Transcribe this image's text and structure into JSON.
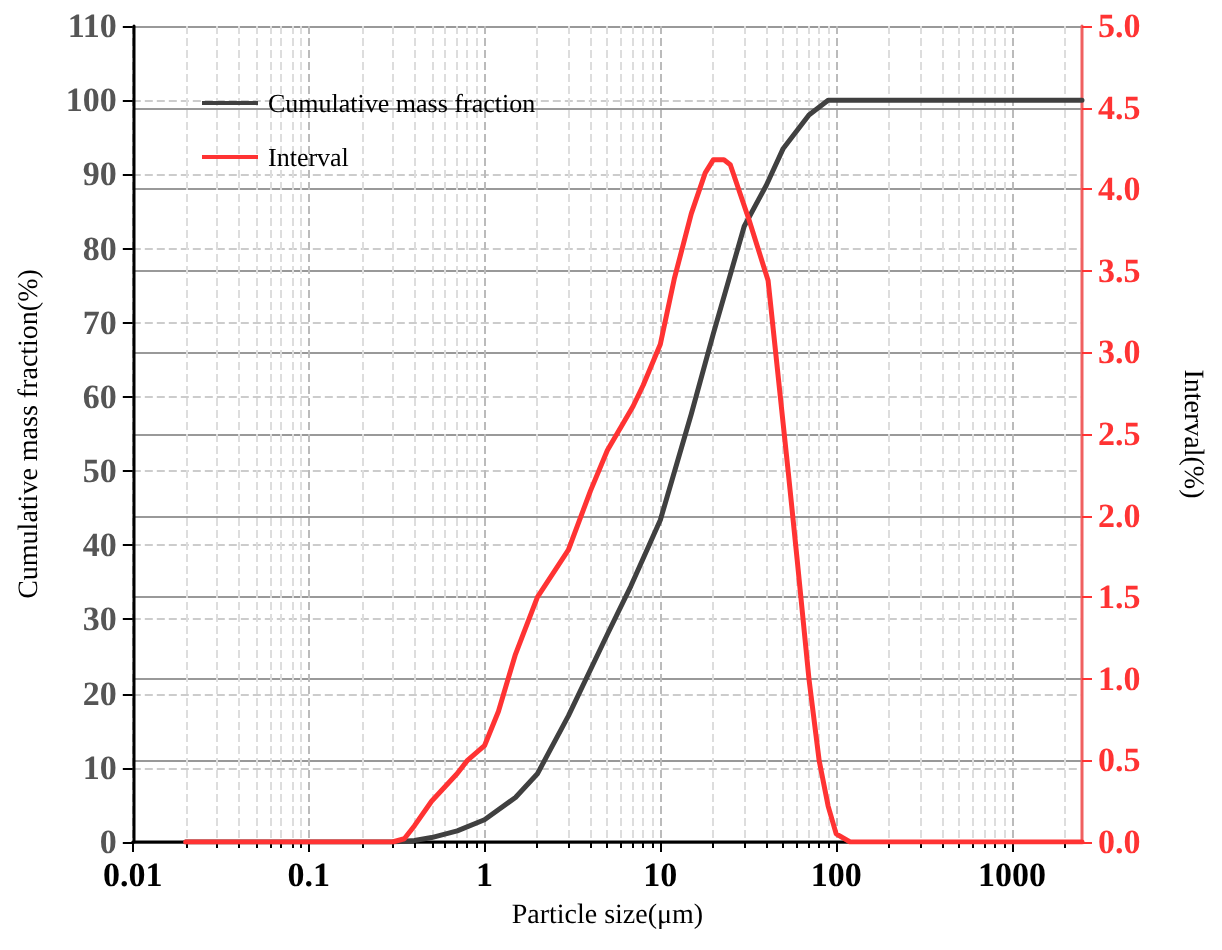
{
  "chart_data": {
    "type": "line",
    "xlabel": "Particle size(μm)",
    "ylabel": "Cumulative mass fraction(%)",
    "y2label": "Interval(%)",
    "log": "x",
    "xlim": [
      0.01,
      2500
    ],
    "xticks": [
      0.01,
      0.1,
      1,
      10,
      100,
      1000
    ],
    "ylim": [
      0,
      110
    ],
    "yticks": [
      0,
      10,
      20,
      30,
      40,
      50,
      60,
      70,
      80,
      90,
      100,
      110
    ],
    "y2lim": [
      0,
      5
    ],
    "y2ticks": [
      {
        "value": 0,
        "label": "0.0"
      },
      {
        "value": 0.5,
        "label": "0.5"
      },
      {
        "value": 1,
        "label": "1.0"
      },
      {
        "value": 1.5,
        "label": "1.5"
      },
      {
        "value": 2,
        "label": "2.0"
      },
      {
        "value": 2.5,
        "label": "2.5"
      },
      {
        "value": 3,
        "label": "3.0"
      },
      {
        "value": 3.5,
        "label": "3.5"
      },
      {
        "value": 4,
        "label": "4.0"
      },
      {
        "value": 4.5,
        "label": "4.5"
      },
      {
        "value": 5,
        "label": "5.0"
      }
    ],
    "grid": true,
    "legend": "top left",
    "marker": "none",
    "line_style": "solid",
    "series": [
      {
        "name": "Cumulative mass fraction",
        "color": "#404040",
        "x": [
          0.02,
          0.3,
          0.4,
          0.5,
          0.7,
          1,
          1.5,
          2,
          3,
          5,
          6.8,
          10,
          15,
          20,
          30,
          40,
          50,
          70,
          90,
          100,
          2500
        ],
        "values": [
          0,
          0,
          0.2,
          0.6,
          1.5,
          3,
          6,
          9.2,
          17,
          28,
          34.5,
          43.4,
          57.7,
          68.5,
          83,
          88.5,
          93.5,
          98,
          100,
          100,
          100
        ]
      },
      {
        "name": "Interval",
        "color": "#ff3333",
        "axis": "y2",
        "x": [
          0.02,
          0.3,
          0.35,
          0.4,
          0.5,
          0.7,
          0.8,
          1,
          1.2,
          1.5,
          2,
          3,
          4,
          5,
          7,
          8,
          10,
          12,
          15,
          18,
          20,
          23,
          25,
          32,
          41,
          53,
          60,
          70,
          80,
          90,
          100,
          120,
          2500
        ],
        "values": [
          0,
          0,
          0.02,
          0.1,
          0.25,
          0.42,
          0.5,
          0.59,
          0.8,
          1.15,
          1.5,
          1.79,
          2.15,
          2.4,
          2.67,
          2.8,
          3.05,
          3.45,
          3.85,
          4.1,
          4.18,
          4.18,
          4.15,
          3.81,
          3.44,
          2.3,
          1.73,
          1.0,
          0.5,
          0.22,
          0.05,
          0,
          0
        ]
      }
    ]
  }
}
